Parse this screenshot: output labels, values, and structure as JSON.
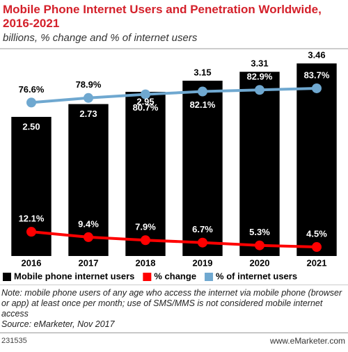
{
  "chart_data": {
    "type": "bar",
    "title": "Mobile Phone Internet Users and Penetration Worldwide, 2016-2021",
    "subtitle": "billions, % change and % of internet users",
    "categories": [
      "2016",
      "2017",
      "2018",
      "2019",
      "2020",
      "2021"
    ],
    "ylim": [
      0,
      3.6
    ],
    "y2lim": [
      0,
      100
    ],
    "series": [
      {
        "name": "Mobile phone internet users",
        "type": "bar",
        "color": "#000000",
        "values": [
          2.5,
          2.73,
          2.95,
          3.15,
          3.31,
          3.46
        ],
        "value_labels": [
          "2.50",
          "2.73",
          "2.95",
          "3.15",
          "3.31",
          "3.46"
        ]
      },
      {
        "name": "% change",
        "type": "line",
        "axis": "y2",
        "color": "#ff0000",
        "values": [
          12.1,
          9.4,
          7.9,
          6.7,
          5.3,
          4.5
        ],
        "value_labels": [
          "12.1%",
          "9.4%",
          "7.9%",
          "6.7%",
          "5.3%",
          "4.5%"
        ]
      },
      {
        "name": "% of internet users",
        "type": "line",
        "axis": "y2",
        "color": "#6fa8d0",
        "values": [
          76.6,
          78.9,
          80.7,
          82.1,
          82.9,
          83.7
        ],
        "value_labels": [
          "76.6%",
          "78.9%",
          "80.7%",
          "82.1%",
          "82.9%",
          "83.7%"
        ]
      }
    ],
    "note": "Note: mobile phone users of any age who access the internet via mobile phone (browser or app) at least once per month; use of SMS/MMS is not considered mobile internet access",
    "source": "Source: eMarketer, Nov 2017",
    "chart_id": "231535",
    "website": "www.eMarketer.com"
  }
}
